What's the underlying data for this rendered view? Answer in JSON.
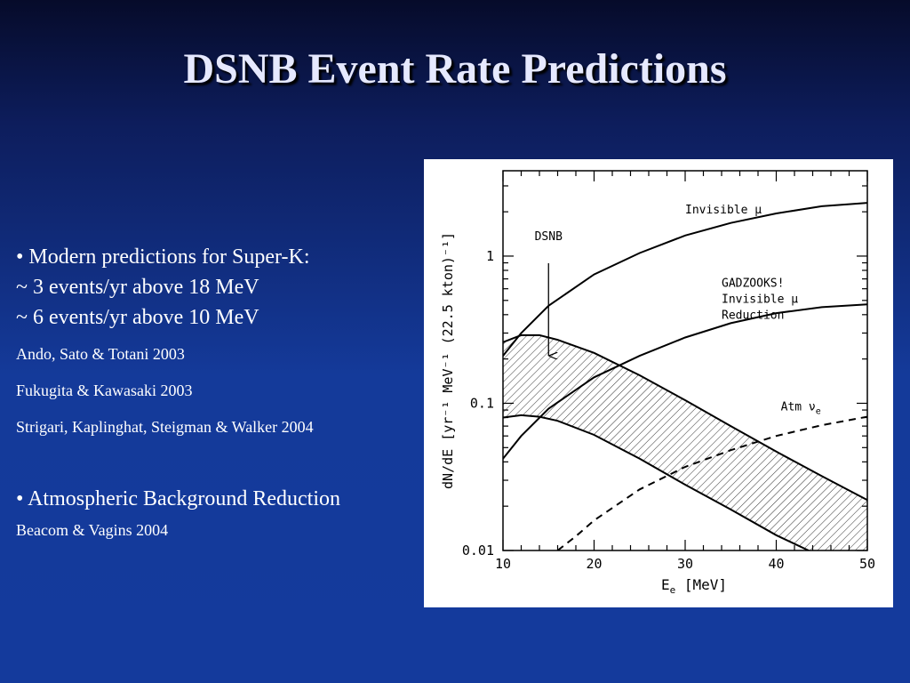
{
  "slide": {
    "title": "DSNB Event Rate Predictions",
    "bullet1": {
      "heading": "• Modern predictions for Super-K:",
      "line1": "~ 3 events/yr  above 18 MeV",
      "line2": "~ 6 events/yr above 10 MeV",
      "refs": [
        "Ando, Sato & Totani 2003",
        "Fukugita & Kawasaki 2003",
        "Strigari, Kaplinghat, Steigman & Walker  2004"
      ]
    },
    "bullet2": {
      "heading": "• Atmospheric Background Reduction",
      "refs": [
        "Beacom & Vagins 2004"
      ]
    }
  },
  "colors": {
    "background_top": "#060b2a",
    "background_bottom": "#143a9c",
    "title": "#e6e9ff",
    "text": "#ffffff",
    "chart_ink": "#000000"
  },
  "chart_data": {
    "type": "line",
    "xlabel": "E",
    "xlabel_sub": "e",
    "xlabel_unit": "[MeV]",
    "ylabel": "dN/dE [yr⁻¹ MeV⁻¹ (22.5 kton)⁻¹]",
    "xlim": [
      10,
      50
    ],
    "ylim": [
      0.01,
      3.8
    ],
    "yscale": "log",
    "x_ticks": [
      10,
      20,
      30,
      40,
      50
    ],
    "y_ticks": [
      0.01,
      0.1,
      1
    ],
    "y_tick_labels": [
      "0.01",
      "0.1",
      "1"
    ],
    "series": [
      {
        "name": "Invisible μ",
        "label": "Invisible μ",
        "style": "solid",
        "x": [
          10,
          12,
          15,
          20,
          25,
          30,
          35,
          40,
          45,
          50
        ],
        "y": [
          0.21,
          0.3,
          0.46,
          0.75,
          1.05,
          1.38,
          1.68,
          1.95,
          2.18,
          2.3
        ]
      },
      {
        "name": "GADZOOKS! Invisible μ Reduction",
        "label": "GADZOOKS!\nInvisible μ\nReduction",
        "style": "solid",
        "x": [
          10,
          12,
          15,
          20,
          25,
          30,
          35,
          40,
          45,
          50
        ],
        "y": [
          0.042,
          0.06,
          0.092,
          0.15,
          0.21,
          0.28,
          0.35,
          0.41,
          0.45,
          0.47
        ]
      },
      {
        "name": "Atm νe",
        "label": "Atm ν",
        "label_sub": "e",
        "style": "dashed",
        "x": [
          16,
          18,
          20,
          25,
          30,
          35,
          40,
          45,
          50
        ],
        "y": [
          0.01,
          0.0125,
          0.016,
          0.026,
          0.037,
          0.048,
          0.06,
          0.071,
          0.081
        ]
      },
      {
        "name": "DSNB upper",
        "style": "band-edge",
        "x": [
          10,
          12,
          14,
          16,
          20,
          25,
          30,
          35,
          40,
          45,
          50
        ],
        "y": [
          0.26,
          0.29,
          0.29,
          0.27,
          0.22,
          0.155,
          0.105,
          0.07,
          0.047,
          0.032,
          0.022
        ]
      },
      {
        "name": "DSNB lower",
        "style": "band-edge",
        "x": [
          10,
          12,
          14,
          16,
          20,
          25,
          30,
          35,
          40,
          44
        ],
        "y": [
          0.08,
          0.083,
          0.081,
          0.076,
          0.061,
          0.042,
          0.028,
          0.019,
          0.0127,
          0.0097
        ]
      }
    ],
    "annotations": [
      {
        "text": "DSNB",
        "arrow_from": [
          15,
          1.0
        ],
        "arrow_to": [
          15,
          0.21
        ]
      }
    ]
  }
}
